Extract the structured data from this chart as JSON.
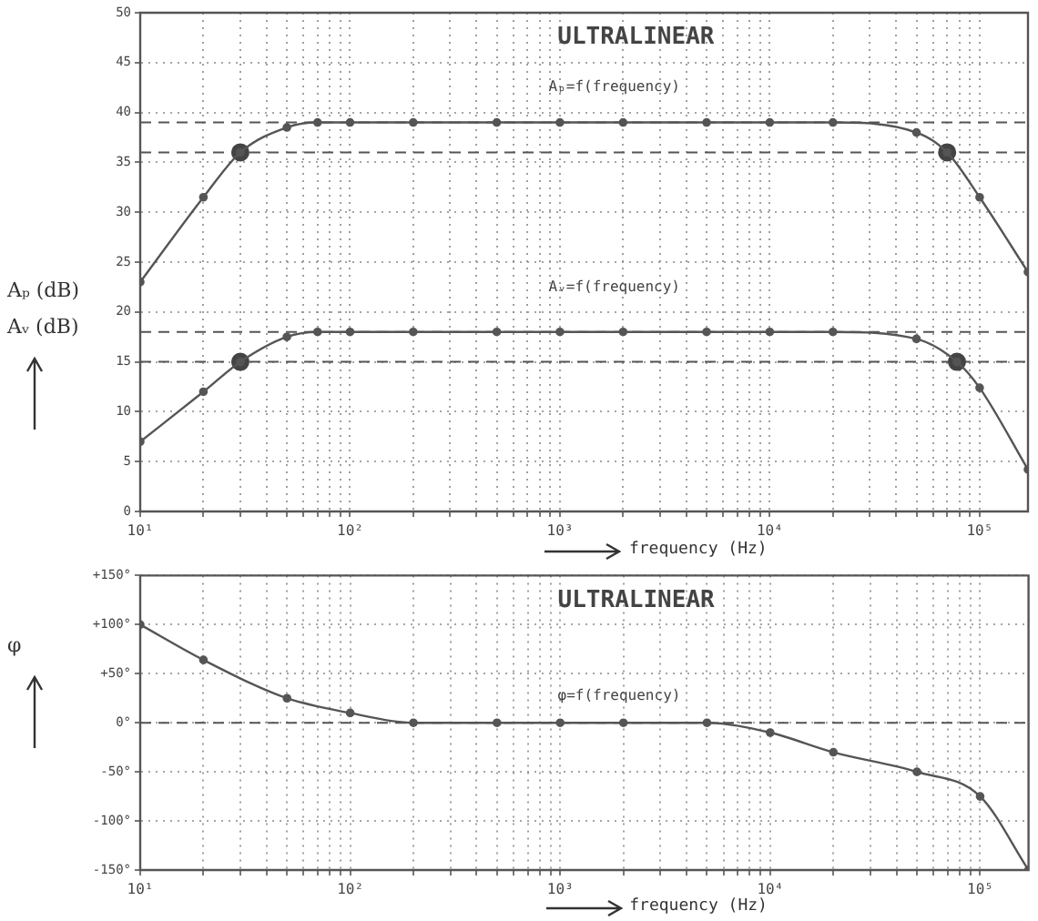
{
  "chart_data": [
    {
      "type": "line",
      "ylabel": "Aₚ (dB)\nAᵥ (dB)",
      "xlabel": "frequency (Hz)",
      "log": "x",
      "grid": true,
      "marker": "circle",
      "line_style": "solid",
      "legend": false,
      "annotations": [
        "ULTRALINEAR",
        "Aₚ=f(frequency)",
        "Aᵥ=f(frequency)"
      ],
      "xlim": [
        10,
        170000
      ],
      "xticks": [
        {
          "value": 10,
          "label": "10¹"
        },
        {
          "value": 20,
          "label": null
        },
        {
          "value": 30,
          "label": null
        },
        {
          "value": 40,
          "label": null
        },
        {
          "value": 50,
          "label": null
        },
        {
          "value": 60,
          "label": null
        },
        {
          "value": 70,
          "label": null
        },
        {
          "value": 80,
          "label": null
        },
        {
          "value": 90,
          "label": null
        },
        {
          "value": 100,
          "label": "10²"
        },
        {
          "value": 200,
          "label": null
        },
        {
          "value": 300,
          "label": null
        },
        {
          "value": 400,
          "label": null
        },
        {
          "value": 500,
          "label": null
        },
        {
          "value": 600,
          "label": null
        },
        {
          "value": 700,
          "label": null
        },
        {
          "value": 800,
          "label": null
        },
        {
          "value": 900,
          "label": null
        },
        {
          "value": 1000,
          "label": "10³"
        },
        {
          "value": 2000,
          "label": null
        },
        {
          "value": 3000,
          "label": null
        },
        {
          "value": 4000,
          "label": null
        },
        {
          "value": 5000,
          "label": null
        },
        {
          "value": 6000,
          "label": null
        },
        {
          "value": 7000,
          "label": null
        },
        {
          "value": 8000,
          "label": null
        },
        {
          "value": 9000,
          "label": null
        },
        {
          "value": 10000,
          "label": "10⁴"
        },
        {
          "value": 20000,
          "label": null
        },
        {
          "value": 30000,
          "label": null
        },
        {
          "value": 40000,
          "label": null
        },
        {
          "value": 50000,
          "label": null
        },
        {
          "value": 60000,
          "label": null
        },
        {
          "value": 70000,
          "label": null
        },
        {
          "value": 80000,
          "label": null
        },
        {
          "value": 90000,
          "label": null
        },
        {
          "value": 100000,
          "label": "10⁵"
        }
      ],
      "ylim": [
        0,
        50
      ],
      "yticks": [
        0,
        5,
        10,
        15,
        20,
        25,
        30,
        35,
        40,
        45,
        50
      ],
      "ref_lines": [
        {
          "axis": "y",
          "value": 39,
          "color": "#555555",
          "line_style": "dashed"
        },
        {
          "axis": "y",
          "value": 36,
          "color": "#555555",
          "line_style": "dashed"
        },
        {
          "axis": "y",
          "value": 18,
          "color": "#555555",
          "line_style": "dashed"
        },
        {
          "axis": "y",
          "value": 15,
          "color": "#555555",
          "line_style": "dashed"
        }
      ],
      "series": [
        {
          "color": "#555555",
          "x": [
            10,
            20,
            30,
            50,
            70,
            100,
            200,
            500,
            1000,
            2000,
            5000,
            10000,
            20000,
            50000,
            70000,
            100000,
            170000
          ],
          "values": [
            23,
            31.5,
            36,
            38.5,
            39,
            39,
            39,
            39,
            39,
            39,
            39,
            39,
            39,
            38,
            36,
            31.5,
            24
          ]
        },
        {
          "color": "#555555",
          "x": [
            10,
            20,
            30,
            50,
            70,
            100,
            200,
            500,
            1000,
            2000,
            5000,
            10000,
            20000,
            50000,
            78000,
            100000,
            170000
          ],
          "values": [
            7,
            12,
            15,
            17.5,
            18,
            18,
            18,
            18,
            18,
            18,
            18,
            18,
            18,
            17.3,
            15,
            12.4,
            4.2
          ]
        },
        {
          "type": "scatter",
          "color": "#444444",
          "x": [
            30,
            70000
          ],
          "values": [
            36,
            36
          ]
        },
        {
          "type": "scatter",
          "color": "#444444",
          "x": [
            30,
            78000
          ],
          "values": [
            15,
            15
          ]
        }
      ]
    },
    {
      "type": "line",
      "ylabel": "φ",
      "xlabel": "frequency (Hz)",
      "log": "x",
      "grid": true,
      "marker": "circle",
      "line_style": "solid",
      "legend": false,
      "annotations": [
        "ULTRALINEAR",
        "φ=f(frequency)"
      ],
      "xlim": [
        10,
        170000
      ],
      "xticks": [
        {
          "value": 10,
          "label": "10¹"
        },
        {
          "value": 20,
          "label": null
        },
        {
          "value": 30,
          "label": null
        },
        {
          "value": 40,
          "label": null
        },
        {
          "value": 50,
          "label": null
        },
        {
          "value": 60,
          "label": null
        },
        {
          "value": 70,
          "label": null
        },
        {
          "value": 80,
          "label": null
        },
        {
          "value": 90,
          "label": null
        },
        {
          "value": 100,
          "label": "10²"
        },
        {
          "value": 200,
          "label": null
        },
        {
          "value": 300,
          "label": null
        },
        {
          "value": 400,
          "label": null
        },
        {
          "value": 500,
          "label": null
        },
        {
          "value": 600,
          "label": null
        },
        {
          "value": 700,
          "label": null
        },
        {
          "value": 800,
          "label": null
        },
        {
          "value": 900,
          "label": null
        },
        {
          "value": 1000,
          "label": "10³"
        },
        {
          "value": 2000,
          "label": null
        },
        {
          "value": 3000,
          "label": null
        },
        {
          "value": 4000,
          "label": null
        },
        {
          "value": 5000,
          "label": null
        },
        {
          "value": 6000,
          "label": null
        },
        {
          "value": 7000,
          "label": null
        },
        {
          "value": 8000,
          "label": null
        },
        {
          "value": 9000,
          "label": null
        },
        {
          "value": 10000,
          "label": "10⁴"
        },
        {
          "value": 20000,
          "label": null
        },
        {
          "value": 30000,
          "label": null
        },
        {
          "value": 40000,
          "label": null
        },
        {
          "value": 50000,
          "label": null
        },
        {
          "value": 60000,
          "label": null
        },
        {
          "value": 70000,
          "label": null
        },
        {
          "value": 80000,
          "label": null
        },
        {
          "value": 90000,
          "label": null
        },
        {
          "value": 100000,
          "label": "10⁵"
        }
      ],
      "ylim": [
        -150,
        150
      ],
      "yticks": [
        {
          "value": -150,
          "label": "-150°"
        },
        {
          "value": -100,
          "label": "-100°"
        },
        {
          "value": -50,
          "label": "-50°"
        },
        {
          "value": 0,
          "label": "0°"
        },
        {
          "value": 50,
          "label": "+50°"
        },
        {
          "value": 100,
          "label": "+100°"
        },
        {
          "value": 150,
          "label": "+150°"
        }
      ],
      "ref_lines": [
        {
          "axis": "y",
          "value": 0,
          "color": "#555555",
          "line_style": "dashed"
        }
      ],
      "series": [
        {
          "color": "#555555",
          "x": [
            10,
            20,
            50,
            100,
            200,
            500,
            1000,
            2000,
            5000,
            10000,
            20000,
            50000,
            100000,
            170000
          ],
          "values": [
            100,
            64,
            25,
            10,
            0,
            0,
            0,
            0,
            0,
            -10,
            -30,
            -50,
            -75,
            -150
          ]
        }
      ]
    }
  ]
}
